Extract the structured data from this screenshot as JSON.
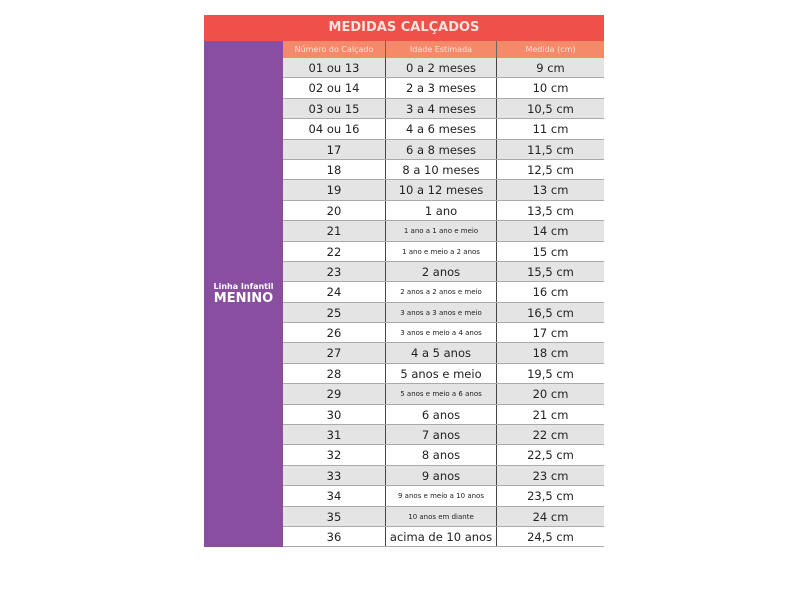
{
  "title": "MEDIDAS CALÇADOS",
  "side": {
    "line1": "Linha Infantil",
    "line2": "MENINO"
  },
  "headers": [
    "Número do Calçado",
    "Idade Estimada",
    "Medida (cm)"
  ],
  "rows": [
    [
      "01 ou 13",
      "0 a 2 meses",
      "9 cm"
    ],
    [
      "02 ou 14",
      "2 a 3 meses",
      "10 cm"
    ],
    [
      "03 ou 15",
      "3 a 4 meses",
      "10,5 cm"
    ],
    [
      "04 ou 16",
      "4 a 6 meses",
      "11 cm"
    ],
    [
      "17",
      "6 a 8 meses",
      "11,5 cm"
    ],
    [
      "18",
      "8 a 10 meses",
      "12,5 cm"
    ],
    [
      "19",
      "10 a 12 meses",
      "13 cm"
    ],
    [
      "20",
      "1 ano",
      "13,5 cm"
    ],
    [
      "21",
      "1 ano a 1 ano e meio",
      "14 cm"
    ],
    [
      "22",
      "1 ano e meio a 2 anos",
      "15 cm"
    ],
    [
      "23",
      "2 anos",
      "15,5 cm"
    ],
    [
      "24",
      "2 anos a 2 anos e meio",
      "16 cm"
    ],
    [
      "25",
      "3 anos a 3 anos e meio",
      "16,5 cm"
    ],
    [
      "26",
      "3 anos e meio a 4 anos",
      "17 cm"
    ],
    [
      "27",
      "4 a 5 anos",
      "18 cm"
    ],
    [
      "28",
      "5 anos e meio",
      "19,5 cm"
    ],
    [
      "29",
      "5 anos e meio a 6 anos",
      "20 cm"
    ],
    [
      "30",
      "6 anos",
      "21 cm"
    ],
    [
      "31",
      "7 anos",
      "22 cm"
    ],
    [
      "32",
      "8 anos",
      "22,5 cm"
    ],
    [
      "33",
      "9 anos",
      "23 cm"
    ],
    [
      "34",
      "9 anos e meio a 10 anos",
      "23,5 cm"
    ],
    [
      "35",
      "10 anos em diante",
      "24 cm"
    ],
    [
      "36",
      "acima de 10 anos",
      "24,5 cm"
    ]
  ]
}
